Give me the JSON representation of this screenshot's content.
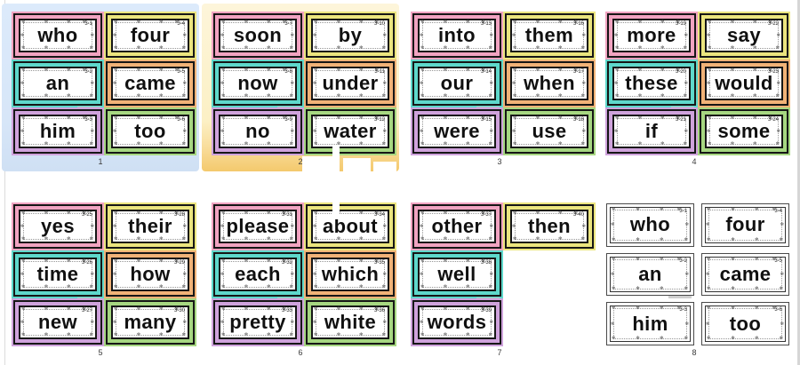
{
  "view": {
    "background": "#ffffff",
    "edge_line_color": "#d6d6d6"
  },
  "palette": {
    "pink": "#f1a3c1",
    "yellow": "#ebe57e",
    "cyan": "#5ed8cb",
    "orange": "#f1b277",
    "purple": "#cfa2dc",
    "green": "#a6d781",
    "plain": "#ffffff"
  },
  "highlights": {
    "selected_blue": "#dbe9fa",
    "active_yellow_top": "#fdf5da",
    "active_yellow_bottom": "#f4c96d"
  },
  "deco": {
    "glyph": "✻"
  },
  "slides": [
    {
      "number": "1",
      "variant": "color",
      "highlight": "blue",
      "cards": [
        {
          "word": "who",
          "id": "3-1",
          "color": "pink"
        },
        {
          "word": "four",
          "id": "3-4",
          "color": "yellow"
        },
        {
          "word": "an",
          "id": "3-2",
          "color": "cyan"
        },
        {
          "word": "came",
          "id": "3-5",
          "color": "orange"
        },
        {
          "word": "him",
          "id": "3-3",
          "color": "purple"
        },
        {
          "word": "too",
          "id": "3-6",
          "color": "green"
        }
      ]
    },
    {
      "number": "2",
      "variant": "color",
      "highlight": "yellow",
      "cards": [
        {
          "word": "soon",
          "id": "3-7",
          "color": "pink"
        },
        {
          "word": "by",
          "id": "3-10",
          "color": "yellow"
        },
        {
          "word": "now",
          "id": "3-8",
          "color": "cyan"
        },
        {
          "word": "under",
          "id": "3-11",
          "color": "orange"
        },
        {
          "word": "no",
          "id": "3-9",
          "color": "purple"
        },
        {
          "word": "water",
          "id": "3-12",
          "color": "green"
        }
      ]
    },
    {
      "number": "3",
      "variant": "color",
      "highlight": null,
      "cards": [
        {
          "word": "into",
          "id": "3-13",
          "color": "pink"
        },
        {
          "word": "them",
          "id": "3-16",
          "color": "yellow"
        },
        {
          "word": "our",
          "id": "3-14",
          "color": "cyan"
        },
        {
          "word": "when",
          "id": "3-17",
          "color": "orange"
        },
        {
          "word": "were",
          "id": "3-15",
          "color": "purple"
        },
        {
          "word": "use",
          "id": "3-18",
          "color": "green"
        }
      ]
    },
    {
      "number": "4",
      "variant": "color",
      "highlight": null,
      "cards": [
        {
          "word": "more",
          "id": "3-19",
          "color": "pink"
        },
        {
          "word": "say",
          "id": "3-22",
          "color": "yellow"
        },
        {
          "word": "these",
          "id": "3-20",
          "color": "cyan"
        },
        {
          "word": "would",
          "id": "3-23",
          "color": "orange"
        },
        {
          "word": "if",
          "id": "3-21",
          "color": "purple"
        },
        {
          "word": "some",
          "id": "3-24",
          "color": "green"
        }
      ]
    },
    {
      "number": "5",
      "variant": "color",
      "highlight": null,
      "cards": [
        {
          "word": "yes",
          "id": "3-25",
          "color": "pink"
        },
        {
          "word": "their",
          "id": "3-28",
          "color": "yellow"
        },
        {
          "word": "time",
          "id": "3-26",
          "color": "cyan"
        },
        {
          "word": "how",
          "id": "3-29",
          "color": "orange"
        },
        {
          "word": "new",
          "id": "3-27",
          "color": "purple"
        },
        {
          "word": "many",
          "id": "3-30",
          "color": "green"
        }
      ]
    },
    {
      "number": "6",
      "variant": "color",
      "highlight": null,
      "cards": [
        {
          "word": "please",
          "id": "3-31",
          "color": "pink"
        },
        {
          "word": "about",
          "id": "3-34",
          "color": "yellow"
        },
        {
          "word": "each",
          "id": "3-32",
          "color": "cyan"
        },
        {
          "word": "which",
          "id": "3-35",
          "color": "orange"
        },
        {
          "word": "pretty",
          "id": "3-33",
          "color": "purple"
        },
        {
          "word": "white",
          "id": "3-36",
          "color": "green"
        }
      ]
    },
    {
      "number": "7",
      "variant": "color",
      "highlight": null,
      "cards": [
        {
          "word": "other",
          "id": "3-37",
          "color": "pink"
        },
        {
          "word": "then",
          "id": "3-40",
          "color": "yellow"
        },
        {
          "word": "well",
          "id": "3-38",
          "color": "cyan"
        },
        null,
        {
          "word": "words",
          "id": "3-39",
          "color": "purple"
        },
        null
      ]
    },
    {
      "number": "8",
      "variant": "plain",
      "highlight": null,
      "cards": [
        {
          "word": "who",
          "id": "3-1",
          "color": "plain"
        },
        {
          "word": "four",
          "id": "3-4",
          "color": "plain"
        },
        {
          "word": "an",
          "id": "3-2",
          "color": "plain"
        },
        {
          "word": "came",
          "id": "3-5",
          "color": "plain"
        },
        {
          "word": "him",
          "id": "3-3",
          "color": "plain"
        },
        {
          "word": "too",
          "id": "3-6",
          "color": "plain"
        }
      ]
    }
  ]
}
